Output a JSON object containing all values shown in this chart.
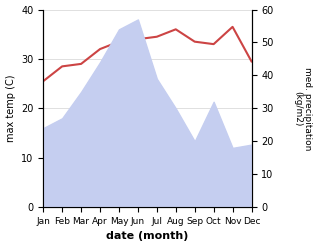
{
  "months": [
    "Jan",
    "Feb",
    "Mar",
    "Apr",
    "May",
    "Jun",
    "Jul",
    "Aug",
    "Sep",
    "Oct",
    "Nov",
    "Dec"
  ],
  "temp_max": [
    25.5,
    28.5,
    29.0,
    32.0,
    33.5,
    34.0,
    34.5,
    36.0,
    33.5,
    33.0,
    36.5,
    29.5
  ],
  "precipitation": [
    24,
    27,
    35,
    44,
    54,
    57,
    39,
    30,
    20,
    32,
    18,
    19
  ],
  "temp_ylim": [
    0,
    40
  ],
  "precip_ylim": [
    0,
    60
  ],
  "temp_color": "#cc4444",
  "precip_fill_color": "#c5cef0",
  "xlabel": "date (month)",
  "ylabel_left": "max temp (C)",
  "ylabel_right": "med. precipitation\n(kg/m2)",
  "bg_color": "#ffffff"
}
